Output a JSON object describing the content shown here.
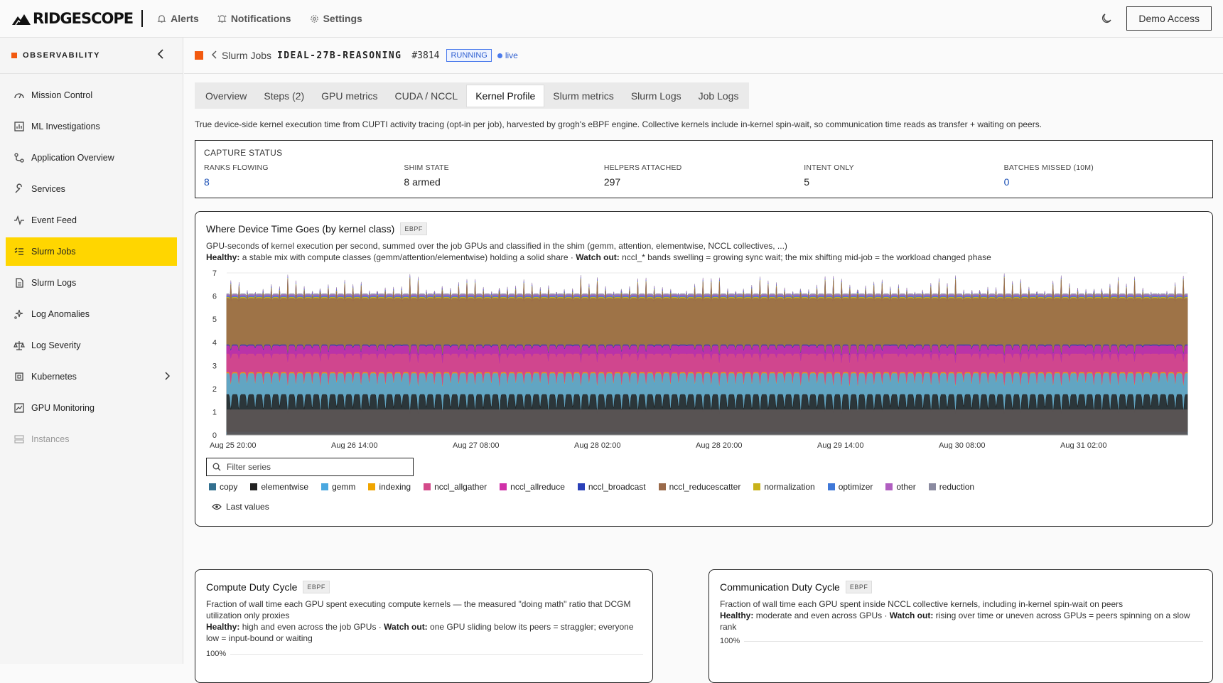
{
  "brand": {
    "name": "RIDGESCOPE"
  },
  "topnav": [
    {
      "label": "Alerts",
      "icon": "bell-icon"
    },
    {
      "label": "Notifications",
      "icon": "bell-ring-icon"
    },
    {
      "label": "Settings",
      "icon": "gear-icon"
    }
  ],
  "topright": {
    "demo_label": "Demo Access"
  },
  "sidebar": {
    "title": "OBSERVABILITY",
    "items": [
      {
        "label": "Mission Control",
        "icon": "gauge-icon"
      },
      {
        "label": "ML Investigations",
        "icon": "chart-box-icon"
      },
      {
        "label": "Application Overview",
        "icon": "route-icon"
      },
      {
        "label": "Services",
        "icon": "wrench-icon"
      },
      {
        "label": "Event Feed",
        "icon": "pulse-icon"
      },
      {
        "label": "Slurm Jobs",
        "icon": "list-check-icon",
        "active": true
      },
      {
        "label": "Slurm Logs",
        "icon": "file-icon"
      },
      {
        "label": "Log Anomalies",
        "icon": "sparkle-icon"
      },
      {
        "label": "Log Severity",
        "icon": "scale-icon"
      },
      {
        "label": "Kubernetes",
        "icon": "cube-icon",
        "expandable": true
      },
      {
        "label": "GPU Monitoring",
        "icon": "monitor-chart-icon"
      },
      {
        "label": "Instances",
        "icon": "server-icon",
        "disabled": true
      }
    ]
  },
  "breadcrumb": {
    "parent": "Slurm Jobs",
    "job": "IDEAL-27B-REASONING",
    "number": "#3814",
    "status": "RUNNING",
    "live": "live"
  },
  "tabs": [
    {
      "label": "Overview"
    },
    {
      "label": "Steps (2)"
    },
    {
      "label": "GPU metrics"
    },
    {
      "label": "CUDA / NCCL"
    },
    {
      "label": "Kernel Profile",
      "active": true
    },
    {
      "label": "Slurm metrics"
    },
    {
      "label": "Slurm Logs"
    },
    {
      "label": "Job Logs"
    }
  ],
  "description": "True device-side kernel execution time from CUPTI activity tracing (opt-in per job), harvested by grogh's eBPF engine. Collective kernels include in-kernel spin-wait, so communication time reads as transfer + waiting on peers.",
  "capture": {
    "title": "CAPTURE STATUS",
    "stats": [
      {
        "label": "RANKS FLOWING",
        "value": "8",
        "accent": true
      },
      {
        "label": "SHIM STATE",
        "value": "8 armed"
      },
      {
        "label": "HELPERS ATTACHED",
        "value": "297"
      },
      {
        "label": "INTENT ONLY",
        "value": "5"
      },
      {
        "label": "BATCHES MISSED (10M)",
        "value": "0",
        "accent": true
      }
    ]
  },
  "main_chart": {
    "title": "Where Device Time Goes (by kernel class)",
    "badge": "EBPF",
    "subtitle": "GPU-seconds of kernel execution per second, summed over the job GPUs and classified in the shim (gemm, attention, elementwise, NCCL collectives, ...)",
    "healthy_label": "Healthy:",
    "healthy_text": "a stable mix with compute classes (gemm/attention/elementwise) holding a solid share",
    "watch_label": "Watch out:",
    "watch_text": "nccl_* bands swelling = growing sync wait; the mix shifting mid-job = the workload changed phase",
    "filter_placeholder": "Filter series",
    "last_values": "Last values"
  },
  "chart_data": {
    "type": "area",
    "stacked": true,
    "ylim": [
      0,
      7
    ],
    "yticks": [
      "0",
      "1",
      "2",
      "3",
      "4",
      "5",
      "6",
      "7"
    ],
    "xticks": [
      "Aug 25 20:00",
      "Aug 26 14:00",
      "Aug 27 08:00",
      "Aug 28 02:00",
      "Aug 28 20:00",
      "Aug 29 14:00",
      "Aug 30 08:00",
      "Aug 31 02:00"
    ],
    "grid": true,
    "cycles": 118,
    "series": [
      {
        "name": "copy",
        "color": "#33708f",
        "level": 0.12
      },
      {
        "name": "elementwise",
        "color": "#222222",
        "level": 1.75
      },
      {
        "name": "gemm",
        "color": "#4aa8e0",
        "level": 2.65
      },
      {
        "name": "indexing",
        "color": "#f0a500",
        "level": 2.7
      },
      {
        "name": "nccl_allgather",
        "color": "#d44a8a",
        "level": 3.5
      },
      {
        "name": "nccl_allreduce",
        "color": "#d030a8",
        "level": 3.85
      },
      {
        "name": "nccl_broadcast",
        "color": "#2a40b8",
        "level": 3.9
      },
      {
        "name": "nccl_reducescatter",
        "color": "#9a6a4a",
        "level": 5.9
      },
      {
        "name": "normalization",
        "color": "#c8b21a",
        "level": 5.95
      },
      {
        "name": "optimizer",
        "color": "#3f78d8",
        "level": 6.0
      },
      {
        "name": "other",
        "color": "#b05ec0",
        "level": 6.05
      },
      {
        "name": "reduction",
        "color": "#8a8aa0",
        "level": 6.1
      }
    ]
  },
  "compute_card": {
    "title": "Compute Duty Cycle",
    "badge": "EBPF",
    "subtitle": "Fraction of wall time each GPU spent executing compute kernels — the measured \"doing math\" ratio that DCGM utilization only proxies",
    "healthy_label": "Healthy:",
    "healthy_text": "high and even across the job GPUs",
    "watch_label": "Watch out:",
    "watch_text": "one GPU sliding below its peers = straggler; everyone low = input-bound or waiting",
    "ytick_top": "100%"
  },
  "comm_card": {
    "title": "Communication Duty Cycle",
    "badge": "EBPF",
    "subtitle": "Fraction of wall time each GPU spent inside NCCL collective kernels, including in-kernel spin-wait on peers",
    "healthy_label": "Healthy:",
    "healthy_text": "moderate and even across GPUs",
    "watch_label": "Watch out:",
    "watch_text": "rising over time or uneven across GPUs = peers spinning on a slow rank",
    "ytick_top": "100%"
  }
}
